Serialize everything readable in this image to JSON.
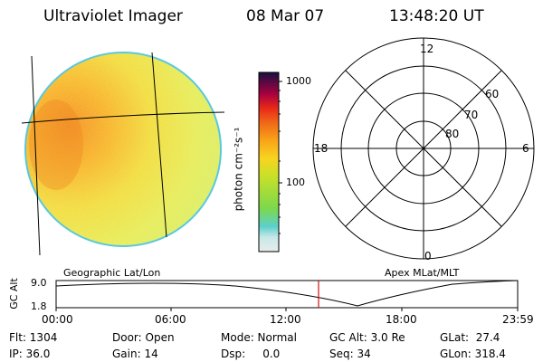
{
  "header": {
    "instrument": "Ultraviolet Imager",
    "date": "08 Mar 07",
    "time": "13:48:20 UT"
  },
  "colorbar": {
    "unit_label": "photon cm⁻²s⁻¹",
    "ticks": [
      "1000",
      "100"
    ],
    "scale": "log",
    "colors": [
      "#e8ecec",
      "#5cd0cc",
      "#7cd84c",
      "#d8e020",
      "#f8a418",
      "#e82818",
      "#a80040",
      "#181040"
    ]
  },
  "polar": {
    "mlt_labels": [
      "12",
      "18",
      "6",
      "0"
    ],
    "lat_labels": [
      "60",
      "70",
      "80"
    ]
  },
  "altitude_panel": {
    "left_title": "Geographic Lat/Lon",
    "right_title": "Apex MLat/MLT",
    "axis_label": "GC Alt",
    "y_max": "9.0",
    "y_min": "1.8",
    "time_ticks": [
      "00:00",
      "06:00",
      "12:00",
      "18:00",
      "23:59"
    ],
    "marker_time": "13:48:20",
    "marker_color": "#d01010"
  },
  "info": {
    "flt": "Flt: 1304",
    "ip": "IP: 36.0",
    "door": "Door: Open",
    "gain": "Gain: 14",
    "mode": "Mode: Normal",
    "dsp": "Dsp:     0.0",
    "gcalt": "GC Alt: 3.0 Re",
    "seq": "Seq: 34",
    "glat": "GLat:  27.4",
    "glon": "GLon: 318.4"
  }
}
